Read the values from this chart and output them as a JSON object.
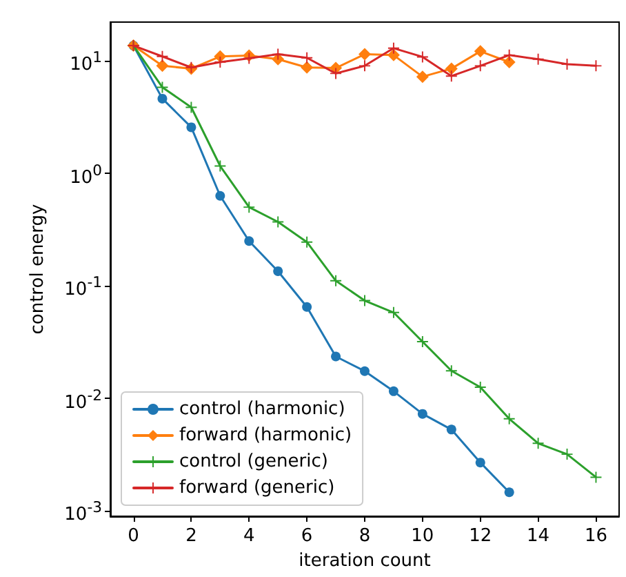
{
  "chart_data": {
    "type": "line",
    "xlabel": "iteration count",
    "ylabel": "control energy",
    "log": "y",
    "x": [
      0,
      1,
      2,
      3,
      4,
      5,
      6,
      7,
      8,
      9,
      10,
      11,
      12,
      13,
      14,
      15,
      16
    ],
    "xlim": [
      -0.8,
      16.8
    ],
    "xticks": [
      0,
      2,
      4,
      6,
      8,
      10,
      12,
      14,
      16
    ],
    "ylim": [
      0.0009,
      22
    ],
    "yticks": [
      {
        "value": 0.001,
        "label": "10$^{-3}$"
      },
      {
        "value": 0.01,
        "label": "10$^{-2}$"
      },
      {
        "value": 0.1,
        "label": "10$^{-1}$"
      },
      {
        "value": 1,
        "label": "10$^{0}$"
      },
      {
        "value": 10,
        "label": "10$^{1}$"
      }
    ],
    "grid": false,
    "legend": "bottom left",
    "series": [
      {
        "name": "control (harmonic)",
        "color": "#1f77b4",
        "marker": "circle",
        "values": [
          13.6,
          4.6,
          2.56,
          0.63,
          0.25,
          0.135,
          0.065,
          0.0236,
          0.0175,
          0.0116,
          0.0073,
          0.0053,
          0.0027,
          0.00147,
          null,
          null,
          null
        ]
      },
      {
        "name": "forward (harmonic)",
        "color": "#ff7f0e",
        "marker": "diamond",
        "values": [
          13.6,
          9.0,
          8.5,
          10.9,
          11.1,
          10.3,
          8.7,
          8.6,
          11.4,
          11.2,
          7.2,
          8.5,
          12.1,
          9.7,
          null,
          null,
          null
        ]
      },
      {
        "name": "control (generic)",
        "color": "#2ca02c",
        "marker": "cross",
        "values": [
          13.6,
          5.8,
          3.85,
          1.16,
          0.5,
          0.37,
          0.245,
          0.111,
          0.074,
          0.058,
          0.032,
          0.0176,
          0.0126,
          0.0066,
          0.004,
          0.0032,
          0.002
        ]
      },
      {
        "name": "forward (generic)",
        "color": "#d62728",
        "marker": "cross",
        "values": [
          13.6,
          10.9,
          8.7,
          9.7,
          10.5,
          11.4,
          10.6,
          7.7,
          9.0,
          12.9,
          10.8,
          7.3,
          9.0,
          11.2,
          10.3,
          9.3,
          9.0
        ]
      }
    ]
  }
}
